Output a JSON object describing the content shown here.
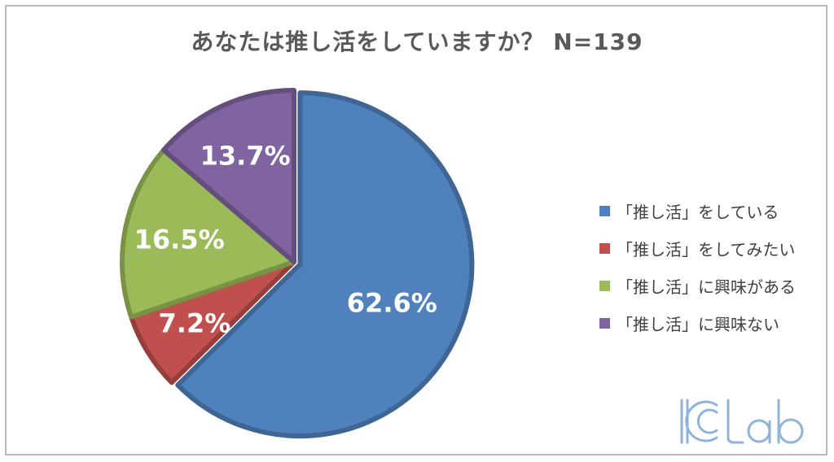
{
  "title": "あなたは推し活をしていますか？ N=139",
  "chart_data": {
    "type": "pie",
    "series": [
      {
        "name": "「推し活」をしている",
        "value": 62.6,
        "label": "62.6%",
        "color": "#4f81bd"
      },
      {
        "name": "「推し活」をしてみたい",
        "value": 7.2,
        "label": "7.2%",
        "color": "#c0504d"
      },
      {
        "name": "「推し活」に興味がある",
        "value": 16.5,
        "label": "16.5%",
        "color": "#9bbb59"
      },
      {
        "name": "「推し活」に興味ない",
        "value": 13.7,
        "label": "13.7%",
        "color": "#8064a2"
      }
    ],
    "legend_position": "right"
  },
  "logo": {
    "text": "ICLab"
  }
}
